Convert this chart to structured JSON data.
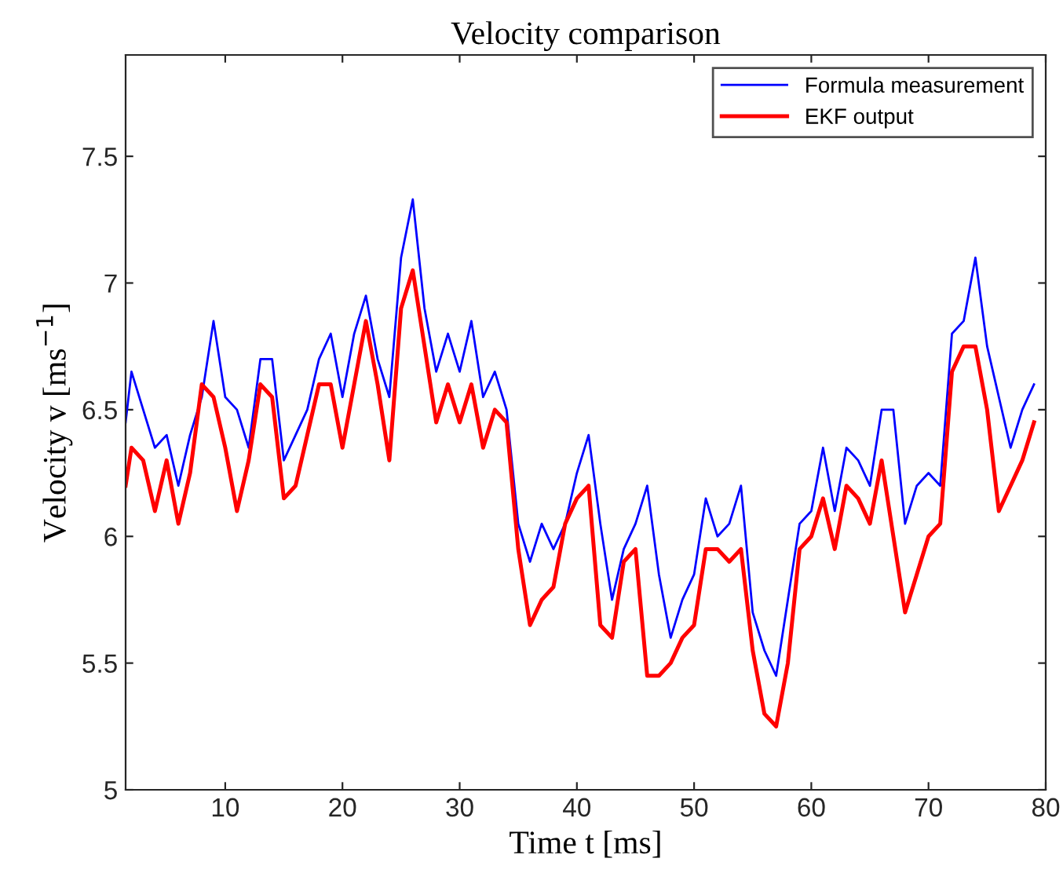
{
  "chart_data": {
    "type": "line",
    "title": "Velocity comparison",
    "xlabel": "Time t [ms]",
    "ylabel": "Velocity v [ms$^{−1}$]",
    "xlim": [
      1.5,
      80
    ],
    "xticks": [
      10,
      20,
      30,
      40,
      50,
      60,
      70,
      80
    ],
    "ylim": [
      5,
      7.9
    ],
    "yticks": [
      5,
      5.5,
      6,
      6.5,
      7,
      7.5
    ],
    "grid": false,
    "legend": "top right",
    "marker": "none",
    "line_style": "solid",
    "x": [
      1.5,
      2,
      3,
      4,
      5,
      6,
      7,
      8,
      9,
      10,
      11,
      12,
      13,
      14,
      15,
      16,
      17,
      18,
      19,
      20,
      21,
      22,
      23,
      24,
      25,
      26,
      27,
      28,
      29,
      30,
      31,
      32,
      33,
      34,
      35,
      36,
      37,
      38,
      39,
      40,
      41,
      42,
      43,
      44,
      45,
      46,
      47,
      48,
      49,
      50,
      51,
      52,
      53,
      54,
      55,
      56,
      57,
      58,
      59,
      60,
      61,
      62,
      63,
      64,
      65,
      66,
      67,
      68,
      69,
      70,
      71,
      72,
      73,
      74,
      75,
      76,
      77,
      78,
      79
    ],
    "series": [
      {
        "name": "Formula measurement",
        "color": "#0000ff",
        "values": [
          6.45,
          6.65,
          6.5,
          6.35,
          6.4,
          6.2,
          6.4,
          6.55,
          6.85,
          6.55,
          6.5,
          6.35,
          6.7,
          6.7,
          6.3,
          6.4,
          6.5,
          6.7,
          6.8,
          6.55,
          6.8,
          6.95,
          6.7,
          6.55,
          7.1,
          7.33,
          6.9,
          6.65,
          6.8,
          6.65,
          6.85,
          6.55,
          6.65,
          6.5,
          6.05,
          5.9,
          6.05,
          5.95,
          6.05,
          6.25,
          6.4,
          6.05,
          5.75,
          5.95,
          6.05,
          6.2,
          5.85,
          5.6,
          5.75,
          5.85,
          6.15,
          6.0,
          6.05,
          6.2,
          5.7,
          5.55,
          5.45,
          5.75,
          6.05,
          6.1,
          6.35,
          6.1,
          6.35,
          6.3,
          6.2,
          6.5,
          6.5,
          6.05,
          6.2,
          6.25,
          6.2,
          6.8,
          6.85,
          7.1,
          6.75,
          6.55,
          6.35,
          6.5,
          6.6
        ]
      },
      {
        "name": "EKF output",
        "color": "#ff0000",
        "values": [
          6.2,
          6.35,
          6.3,
          6.1,
          6.3,
          6.05,
          6.25,
          6.6,
          6.55,
          6.35,
          6.1,
          6.3,
          6.6,
          6.55,
          6.15,
          6.2,
          6.4,
          6.6,
          6.6,
          6.35,
          6.6,
          6.85,
          6.6,
          6.3,
          6.9,
          7.05,
          6.75,
          6.45,
          6.6,
          6.45,
          6.6,
          6.35,
          6.5,
          6.45,
          5.95,
          5.65,
          5.75,
          5.8,
          6.05,
          6.15,
          6.2,
          5.65,
          5.6,
          5.9,
          5.95,
          5.45,
          5.45,
          5.5,
          5.6,
          5.65,
          5.95,
          5.95,
          5.9,
          5.95,
          5.55,
          5.3,
          5.25,
          5.5,
          5.95,
          6.0,
          6.15,
          5.95,
          6.2,
          6.15,
          6.05,
          6.3,
          6.0,
          5.7,
          5.85,
          6.0,
          6.05,
          6.65,
          6.75,
          6.75,
          6.5,
          6.1,
          6.2,
          6.3,
          6.45
        ]
      }
    ]
  }
}
